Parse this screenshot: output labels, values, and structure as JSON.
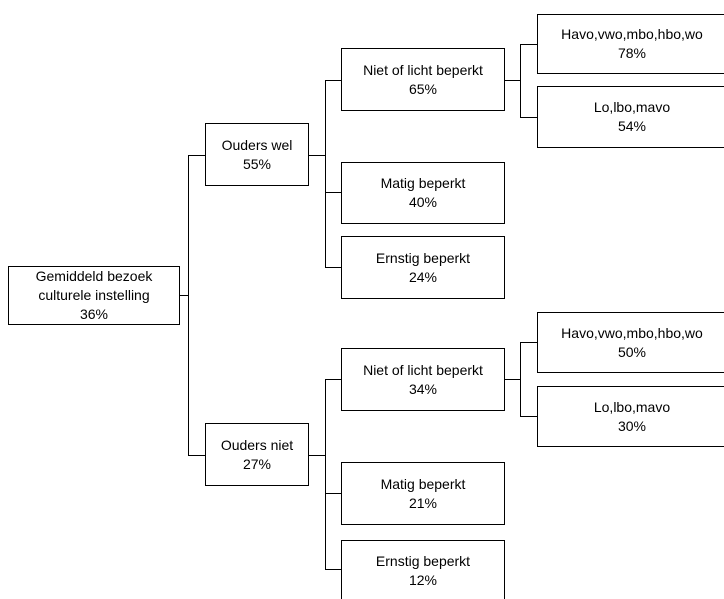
{
  "tree": {
    "root": {
      "line1": "Gemiddeld bezoek",
      "line2": "culturele instelling",
      "value": "36%"
    },
    "branches": [
      {
        "label": "Ouders wel",
        "value": "55%",
        "children": [
          {
            "label": "Niet of licht beperkt",
            "value": "65%",
            "children": [
              {
                "label": "Havo,vwo,mbo,hbo,wo",
                "value": "78%"
              },
              {
                "label": "Lo,lbo,mavo",
                "value": "54%"
              }
            ]
          },
          {
            "label": "Matig beperkt",
            "value": "40%"
          },
          {
            "label": "Ernstig beperkt",
            "value": "24%"
          }
        ]
      },
      {
        "label": "Ouders niet",
        "value": "27%",
        "children": [
          {
            "label": "Niet of licht beperkt",
            "value": "34%",
            "children": [
              {
                "label": "Havo,vwo,mbo,hbo,wo",
                "value": "50%"
              },
              {
                "label": "Lo,lbo,mavo",
                "value": "30%"
              }
            ]
          },
          {
            "label": "Matig beperkt",
            "value": "21%"
          },
          {
            "label": "Ernstig beperkt",
            "value": "12%"
          }
        ]
      }
    ]
  }
}
